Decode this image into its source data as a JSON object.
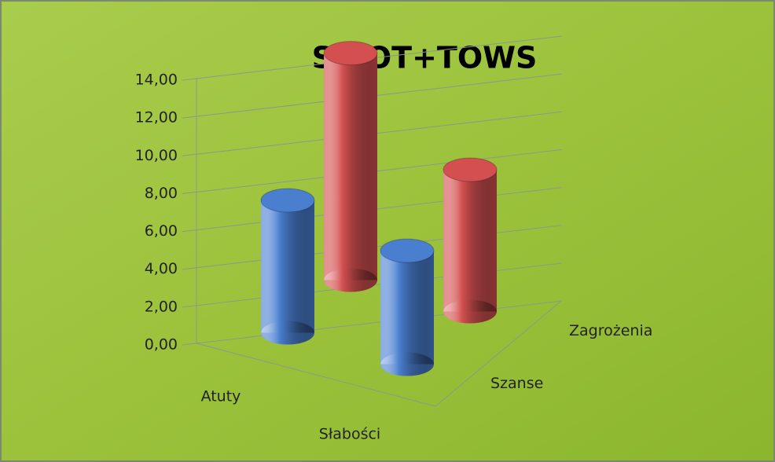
{
  "chart_data": {
    "type": "bar3d",
    "title": "SWOT+TOWS",
    "categories": [
      "Atuty",
      "Słabości"
    ],
    "series": [
      {
        "name": "Szanse",
        "color": "#4a7fd0",
        "values": [
          7.0,
          6.0
        ]
      },
      {
        "name": "Zagrożenia",
        "color": "#d45050",
        "values": [
          12.0,
          7.5
        ]
      }
    ],
    "ylim": [
      0,
      14
    ],
    "yticks": [
      {
        "value": 0,
        "label": "0,00"
      },
      {
        "value": 2,
        "label": "2,00"
      },
      {
        "value": 4,
        "label": "4,00"
      },
      {
        "value": 6,
        "label": "6,00"
      },
      {
        "value": 8,
        "label": "8,00"
      },
      {
        "value": 10,
        "label": "10,00"
      },
      {
        "value": 12,
        "label": "12,00"
      },
      {
        "value": 14,
        "label": "14,00"
      }
    ],
    "grid": true
  }
}
